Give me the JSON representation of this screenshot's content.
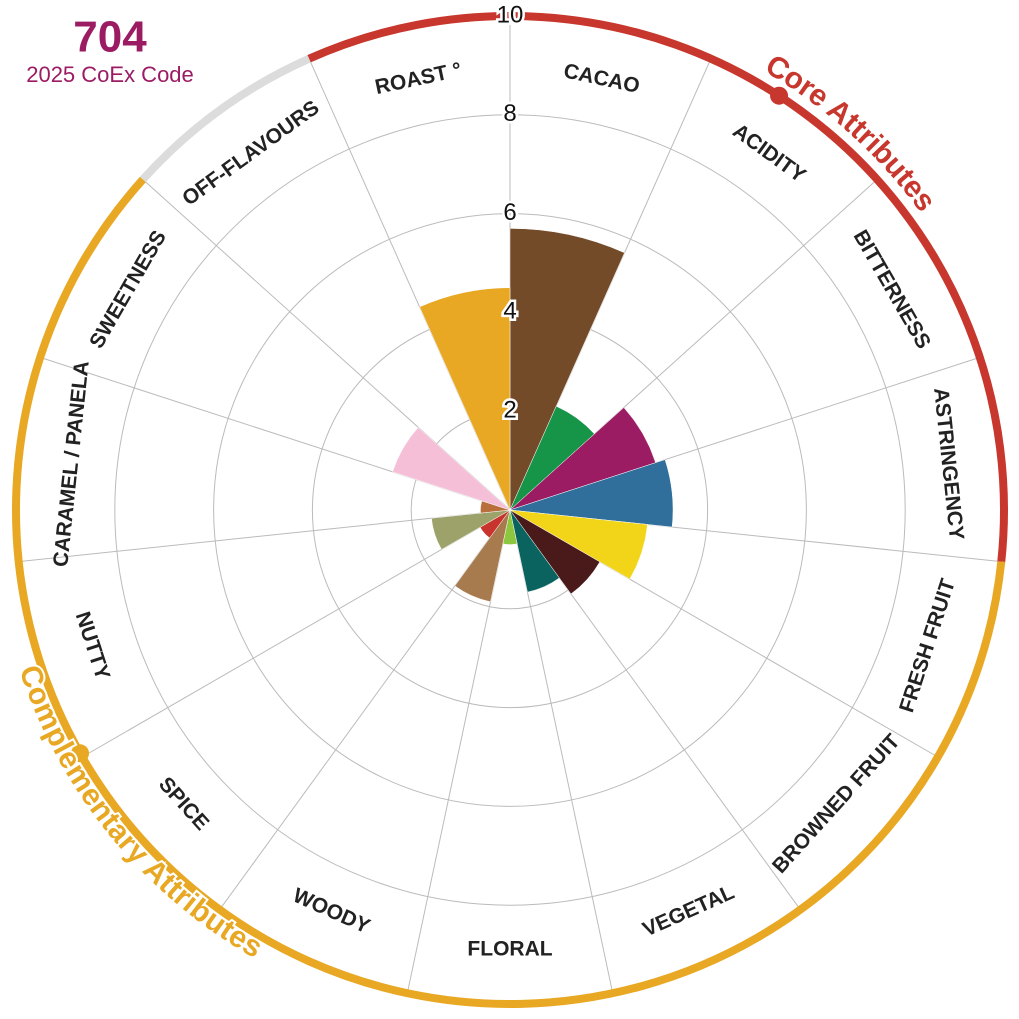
{
  "chart_data": {
    "type": "polar_bar",
    "code": "704",
    "subtitle": "2025 CoEx Code",
    "categories": [
      "CACAO",
      "ACIDITY",
      "BITTERNESS",
      "ASTRINGENCY",
      "FRESH FRUIT",
      "BROWNED FRUIT",
      "VEGETAL",
      "FLORAL",
      "WOODY",
      "SPICE",
      "NUTTY",
      "CARAMEL / PANELA",
      "SWEETNESS",
      "OFF-FLAVOURS",
      "ROAST °"
    ],
    "values": [
      5.7,
      2.3,
      3.1,
      3.3,
      2.8,
      2.1,
      1.7,
      0.7,
      1.9,
      0.7,
      1.6,
      0.6,
      2.5,
      0,
      4.5
    ],
    "colors": [
      "#734b29",
      "#169447",
      "#9b1c63",
      "#306f9b",
      "#f2d419",
      "#4a1a1a",
      "#0b6360",
      "#8dc63f",
      "#a87b4f",
      "#c8332d",
      "#9da26a",
      "#b86f3c",
      "#f5bfd7",
      "#cccccc",
      "#e8a823"
    ],
    "ylim": [
      0,
      10
    ],
    "yticks": [
      2,
      4,
      6,
      8,
      10
    ],
    "grid": true,
    "groups": [
      {
        "name": "Core Attributes",
        "color": "#c8372d",
        "members": [
          "ROAST °",
          "CACAO",
          "ACIDITY",
          "BITTERNESS",
          "ASTRINGENCY"
        ]
      },
      {
        "name": "Complementary Attributes",
        "color": "#e8a823",
        "members": [
          "FRESH FRUIT",
          "BROWNED FRUIT",
          "VEGETAL",
          "FLORAL",
          "WOODY",
          "SPICE",
          "NUTTY",
          "CARAMEL / PANELA",
          "SWEETNESS"
        ]
      },
      {
        "color": "#dcdcdc",
        "members": [
          "OFF-FLAVOURS"
        ]
      }
    ]
  }
}
